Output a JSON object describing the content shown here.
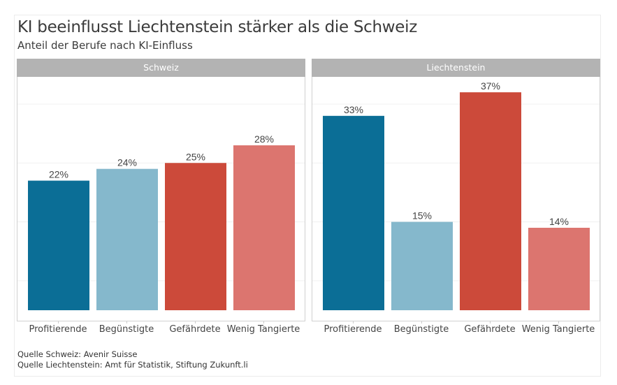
{
  "chart_data": {
    "type": "bar",
    "title": "KI beeinflusst Liechtenstein stärker als die Schweiz",
    "subtitle": "Anteil der Berufe nach KI-Einfluss",
    "xlabel": "",
    "ylabel": "",
    "categories": [
      "Profitierende",
      "Begünstigte",
      "Gefährdete",
      "Wenig Tangierte"
    ],
    "colors": [
      "#0b6e96",
      "#85b8cc",
      "#cc4a3a",
      "#dc756f"
    ],
    "ylim": [
      0,
      40
    ],
    "grid": true,
    "facets": [
      {
        "name": "Schweiz",
        "values": [
          22,
          24,
          25,
          28
        ],
        "labels": [
          "22%",
          "24%",
          "25%",
          "28%"
        ]
      },
      {
        "name": "Liechtenstein",
        "values": [
          33,
          15,
          37,
          14
        ],
        "labels": [
          "33%",
          "15%",
          "37%",
          "14%"
        ]
      }
    ],
    "captions": [
      "Quelle Schweiz: Avenir Suisse",
      "Quelle Liechtenstein: Amt für Statistik, Stiftung Zukunft.li"
    ]
  }
}
